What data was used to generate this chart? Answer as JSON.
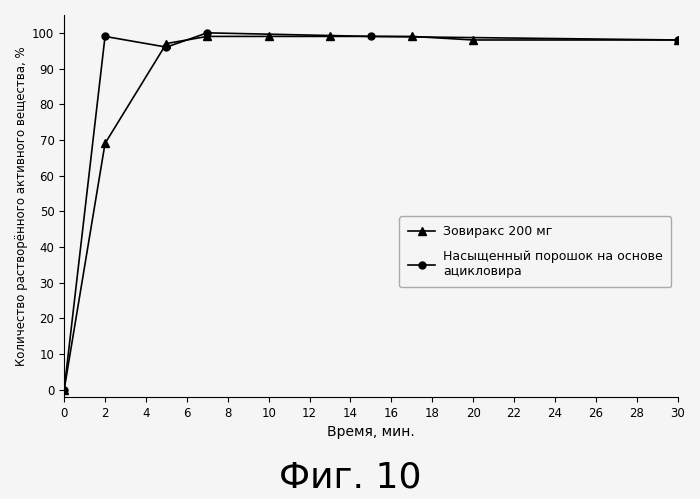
{
  "series1_label": "Зовиракс 200 мг",
  "series2_label": "Насыщенный порошок на основе\nацикловира",
  "series1_x": [
    0,
    2,
    5,
    7,
    10,
    13,
    17,
    20,
    30
  ],
  "series1_y": [
    0,
    69,
    97,
    99,
    99,
    99,
    99,
    98,
    98
  ],
  "series2_x": [
    0,
    2,
    5,
    7,
    15,
    30
  ],
  "series2_y": [
    0,
    99,
    96,
    100,
    99,
    98
  ],
  "xlabel": "Время, мин.",
  "ylabel": "Количество растворённого активного вещества, %",
  "title": "Фиг. 10",
  "xlim": [
    0,
    30
  ],
  "ylim": [
    -2,
    105
  ],
  "xticks": [
    0,
    2,
    4,
    6,
    8,
    10,
    12,
    14,
    16,
    18,
    20,
    22,
    24,
    26,
    28,
    30
  ],
  "yticks": [
    0,
    10,
    20,
    30,
    40,
    50,
    60,
    70,
    80,
    90,
    100
  ],
  "line_color": "#000000",
  "bg_color": "#f5f5f5"
}
